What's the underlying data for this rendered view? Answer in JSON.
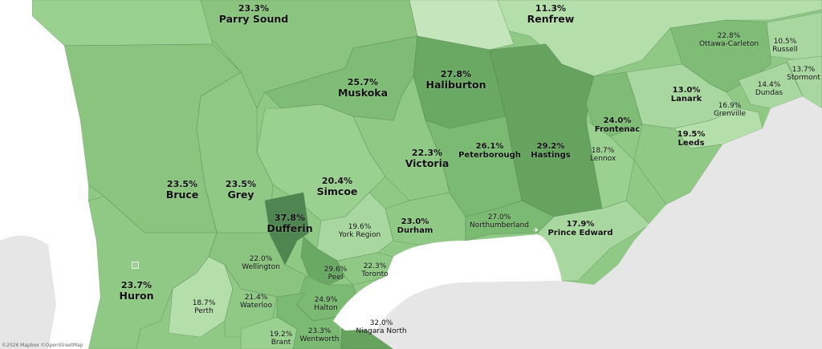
{
  "map": {
    "attribution": "©2026 Mapbox ©OpenStreetMap",
    "colors": {
      "water": "#ffffff",
      "land_outside": "#e6e6e6",
      "pale": "#c5e6bd",
      "light": "#a8d89f",
      "mid": "#90c986",
      "mid_dark": "#7aba72",
      "dark": "#65a35f",
      "darkest": "#4e8550"
    }
  },
  "regions": [
    {
      "name": "Parry Sound",
      "value": "23.3%"
    },
    {
      "name": "Renfrew",
      "value": "11.3%"
    },
    {
      "name": "Ottawa-Carleton",
      "value": "22.8%"
    },
    {
      "name": "Russell",
      "value": "10.5%"
    },
    {
      "name": "Stormont",
      "value": "13.7%"
    },
    {
      "name": "Dundas",
      "value": "14.4%"
    },
    {
      "name": "Muskoka",
      "value": "25.7%"
    },
    {
      "name": "Haliburton",
      "value": "27.8%"
    },
    {
      "name": "Lanark",
      "value": "13.0%"
    },
    {
      "name": "Grenville",
      "value": "16.9%"
    },
    {
      "name": "Frontenac",
      "value": "24.0%"
    },
    {
      "name": "Leeds",
      "value": "19.5%"
    },
    {
      "name": "Lennox",
      "value": "18.7%"
    },
    {
      "name": "Hastings",
      "value": "29.2%"
    },
    {
      "name": "Peterborough",
      "value": "26.1%"
    },
    {
      "name": "Victoria",
      "value": "22.3%"
    },
    {
      "name": "Simcoe",
      "value": "20.4%"
    },
    {
      "name": "Bruce",
      "value": "23.5%"
    },
    {
      "name": "Grey",
      "value": "23.5%"
    },
    {
      "name": "Dufferin",
      "value": "37.8%"
    },
    {
      "name": "York Region",
      "value": "19.6%"
    },
    {
      "name": "Durham",
      "value": "23.0%"
    },
    {
      "name": "Northumberland",
      "value": "27.0%"
    },
    {
      "name": "Prince Edward",
      "value": "17.9%"
    },
    {
      "name": "Wellington",
      "value": "22.0%"
    },
    {
      "name": "Peel",
      "value": "29.6%"
    },
    {
      "name": "Toronto",
      "value": "22.3%"
    },
    {
      "name": "Huron",
      "value": "23.7%"
    },
    {
      "name": "Perth",
      "value": "18.7%"
    },
    {
      "name": "Waterloo",
      "value": "21.4%"
    },
    {
      "name": "Halton",
      "value": "24.9%"
    },
    {
      "name": "Niagara North",
      "value": "32.0%"
    },
    {
      "name": "Brant",
      "value": "19.2%"
    },
    {
      "name": "Wentworth",
      "value": "23.3%"
    }
  ]
}
